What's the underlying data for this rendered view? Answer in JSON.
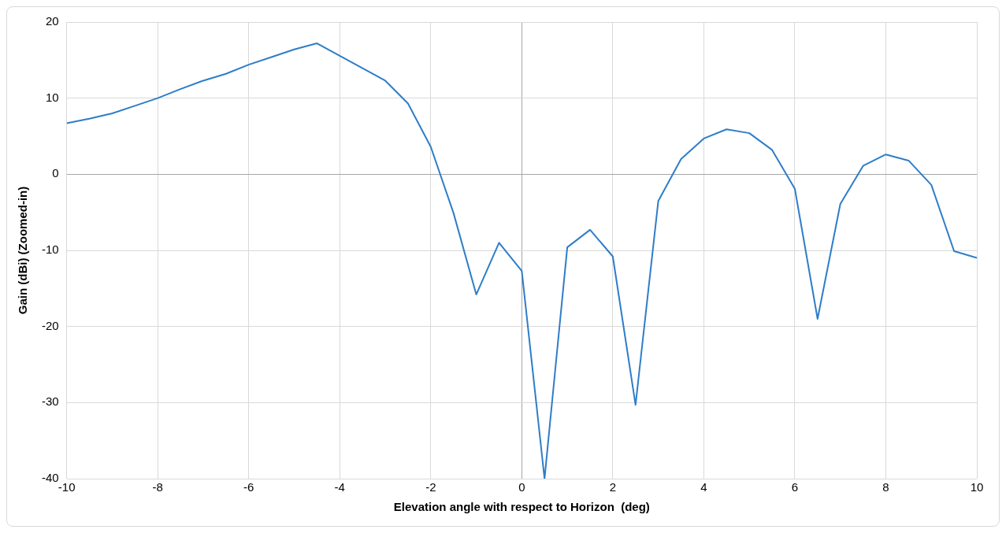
{
  "chart_data": {
    "type": "line",
    "xlabel": "Elevation angle with respect to Horizon  (deg)",
    "ylabel": "Gain (dBi) (Zoomed-in)",
    "x": [
      -10,
      -9.5,
      -9,
      -8.5,
      -8,
      -7.5,
      -7,
      -6.5,
      -6,
      -5.5,
      -5,
      -4.5,
      -3,
      -2.5,
      -2,
      -1.5,
      -1,
      -0.5,
      0,
      0.5,
      1,
      1.5,
      2,
      2.5,
      3,
      3.5,
      4,
      4.5,
      5,
      5.5,
      6,
      6.5,
      7,
      7.5,
      8,
      8.5,
      9,
      9.5,
      10
    ],
    "series": [
      {
        "color": "#2e7dc8",
        "values": [
          6.7,
          7.3,
          8.0,
          9.0,
          10.0,
          11.2,
          12.3,
          13.2,
          14.4,
          15.4,
          16.4,
          17.2,
          12.3,
          9.3,
          3.6,
          -5.1,
          -15.8,
          -9.0,
          -12.7,
          -40,
          -9.6,
          -7.3,
          -10.8,
          -30.3,
          -3.5,
          2.0,
          4.7,
          5.9,
          5.4,
          3.2,
          -1.9,
          -19.0,
          -3.9,
          1.1,
          2.6,
          1.8,
          -1.4,
          -10.1,
          -11.0
        ]
      }
    ],
    "xlim": [
      -10,
      10
    ],
    "xticks": [
      -10,
      -8,
      -6,
      -4,
      -2,
      0,
      2,
      4,
      6,
      8,
      10
    ],
    "ylim": [
      -40,
      20
    ],
    "yticks": [
      -40,
      -30,
      -20,
      -10,
      0,
      10,
      20
    ],
    "grid": true,
    "legend": false,
    "marker": "none",
    "line_style": "solid"
  }
}
